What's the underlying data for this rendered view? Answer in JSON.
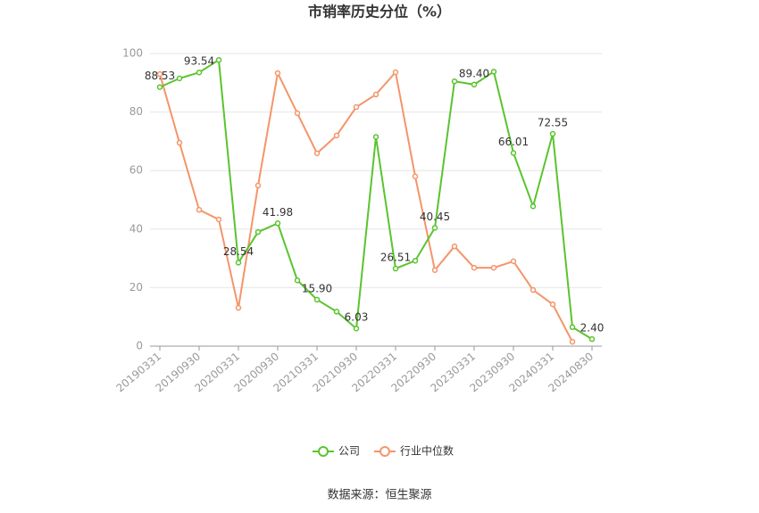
{
  "chart_data": {
    "type": "line",
    "title": "市销率历史分位（%）",
    "source": "数据来源：恒生聚源",
    "categories": [
      "20190331",
      null,
      "20190930",
      null,
      "20200331",
      null,
      "20200930",
      null,
      "20210331",
      null,
      "20210930",
      null,
      "20220331",
      null,
      "20220930",
      null,
      "20230331",
      null,
      "20230930",
      null,
      "20240331",
      null,
      "20240830"
    ],
    "series": [
      {
        "name": "公司",
        "color": "#5ac42f",
        "values": [
          88.53,
          91.5,
          93.54,
          97.8,
          28.54,
          39.0,
          41.98,
          22.5,
          15.9,
          11.8,
          6.03,
          71.5,
          26.51,
          29.2,
          40.45,
          90.5,
          89.4,
          93.8,
          66.01,
          47.8,
          72.55,
          6.5,
          2.4
        ],
        "value_labels": [
          "88.53",
          null,
          "93.54",
          null,
          "28.54",
          null,
          "41.98",
          null,
          "15.90",
          null,
          "6.03",
          null,
          "26.51",
          null,
          "40.45",
          null,
          "89.40",
          null,
          "66.01",
          null,
          "72.55",
          null,
          "2.40"
        ]
      },
      {
        "name": "行业中位数",
        "color": "#f4956a",
        "values": [
          93.0,
          69.5,
          46.6,
          43.3,
          13.1,
          54.9,
          93.3,
          79.6,
          65.9,
          72.0,
          81.7,
          86.0,
          93.6,
          58.0,
          26.0,
          34.1,
          26.8,
          26.8,
          29.0,
          19.2,
          14.3,
          1.5,
          null
        ]
      }
    ],
    "ylim": [
      0,
      100
    ],
    "yticks": [
      0,
      20,
      40,
      60,
      80,
      100
    ],
    "grid": true,
    "legend": "bottom"
  }
}
